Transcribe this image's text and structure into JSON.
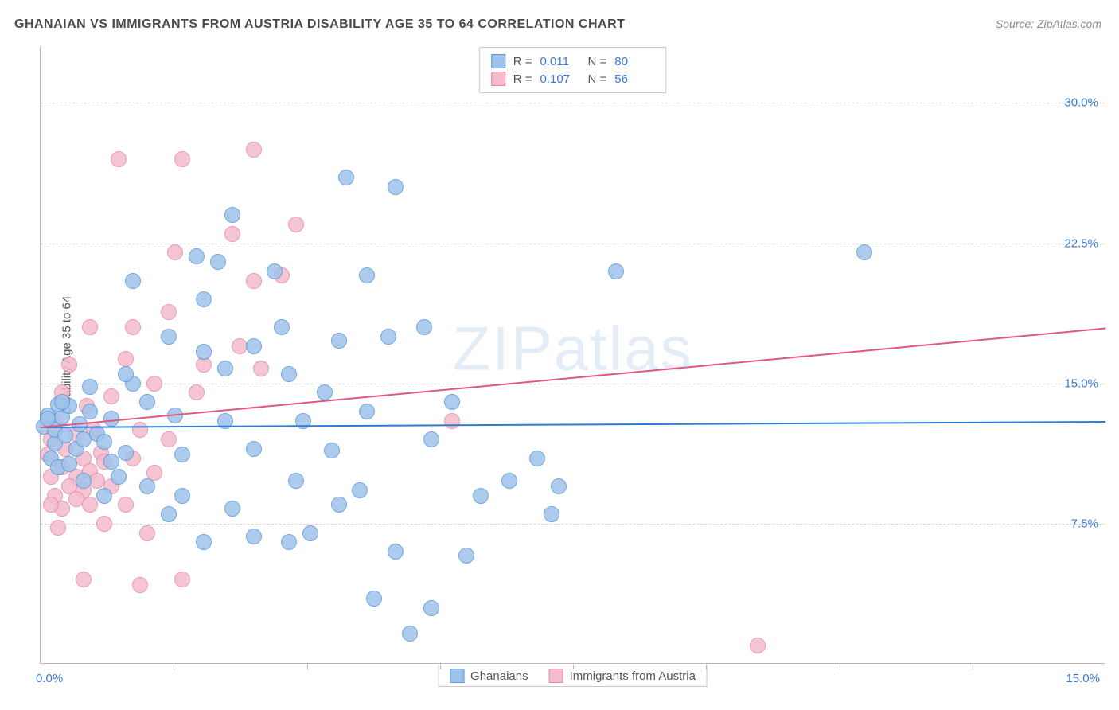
{
  "title": "GHANAIAN VS IMMIGRANTS FROM AUSTRIA DISABILITY AGE 35 TO 64 CORRELATION CHART",
  "source": "Source: ZipAtlas.com",
  "ylabel": "Disability Age 35 to 64",
  "watermark_a": "ZIP",
  "watermark_b": "atlas",
  "chart": {
    "type": "scatter",
    "xlim": [
      0,
      15
    ],
    "ylim": [
      0,
      33
    ],
    "ytick_values": [
      7.5,
      15.0,
      22.5,
      30.0
    ],
    "ytick_labels": [
      "7.5%",
      "15.0%",
      "22.5%",
      "30.0%"
    ],
    "xtick_values": [
      1.875,
      3.75,
      5.625,
      7.5,
      9.375,
      11.25,
      13.125
    ],
    "xaxis_left_label": "0.0%",
    "xaxis_right_label": "15.0%",
    "grid_color": "#d6d6d6",
    "axis_color": "#b9b9b9",
    "background_color": "#ffffff",
    "point_radius": 10,
    "point_border_width": 1.5,
    "point_fill_opacity": 0.35,
    "series": [
      {
        "name": "Ghanaians",
        "color_border": "#5e98d9",
        "color_fill": "#9ec3ea",
        "trend_color": "#2d7dd2",
        "R": "0.011",
        "N": "80",
        "trend_y_at_xmin": 12.7,
        "trend_y_at_xmax": 13.0,
        "points": [
          [
            11.6,
            22.0
          ],
          [
            8.1,
            21.0
          ],
          [
            5.4,
            18.0
          ],
          [
            4.9,
            17.5
          ],
          [
            4.3,
            26.0
          ],
          [
            5.0,
            25.5
          ],
          [
            6.6,
            9.8
          ],
          [
            6.2,
            9.0
          ],
          [
            7.0,
            11.0
          ],
          [
            7.3,
            9.5
          ],
          [
            7.2,
            8.0
          ],
          [
            5.5,
            3.0
          ],
          [
            4.7,
            3.5
          ],
          [
            5.0,
            6.0
          ],
          [
            6.0,
            5.8
          ],
          [
            5.2,
            1.6
          ],
          [
            3.0,
            6.8
          ],
          [
            3.5,
            6.5
          ],
          [
            2.3,
            6.5
          ],
          [
            2.7,
            8.3
          ],
          [
            3.8,
            7.0
          ],
          [
            4.2,
            8.5
          ],
          [
            3.0,
            11.5
          ],
          [
            2.6,
            13.0
          ],
          [
            2.0,
            11.2
          ],
          [
            1.9,
            13.3
          ],
          [
            2.3,
            16.7
          ],
          [
            3.0,
            17.0
          ],
          [
            2.3,
            19.5
          ],
          [
            2.2,
            21.8
          ],
          [
            2.5,
            21.5
          ],
          [
            1.3,
            20.5
          ],
          [
            1.8,
            17.5
          ],
          [
            1.3,
            15.0
          ],
          [
            3.3,
            21.0
          ],
          [
            2.7,
            24.0
          ],
          [
            3.4,
            18.0
          ],
          [
            3.5,
            15.5
          ],
          [
            2.6,
            15.8
          ],
          [
            3.7,
            13.0
          ],
          [
            4.1,
            11.4
          ],
          [
            4.6,
            13.5
          ],
          [
            4.2,
            17.3
          ],
          [
            4.6,
            20.8
          ],
          [
            0.05,
            12.7
          ],
          [
            0.1,
            13.3
          ],
          [
            0.2,
            11.8
          ],
          [
            0.2,
            12.5
          ],
          [
            0.3,
            13.2
          ],
          [
            0.35,
            12.2
          ],
          [
            0.4,
            13.8
          ],
          [
            0.5,
            11.5
          ],
          [
            0.55,
            12.8
          ],
          [
            0.6,
            12.0
          ],
          [
            0.7,
            13.5
          ],
          [
            0.8,
            12.3
          ],
          [
            0.9,
            11.9
          ],
          [
            1.0,
            13.1
          ],
          [
            1.0,
            10.8
          ],
          [
            1.2,
            11.3
          ],
          [
            0.15,
            11.0
          ],
          [
            0.25,
            10.5
          ],
          [
            0.4,
            10.7
          ],
          [
            0.1,
            13.1
          ],
          [
            0.25,
            13.9
          ],
          [
            5.8,
            14.0
          ],
          [
            5.5,
            12.0
          ],
          [
            4.0,
            14.5
          ],
          [
            4.5,
            9.3
          ],
          [
            3.6,
            9.8
          ],
          [
            2.0,
            9.0
          ],
          [
            1.5,
            9.5
          ],
          [
            1.8,
            8.0
          ],
          [
            0.6,
            9.8
          ],
          [
            0.9,
            9.0
          ],
          [
            1.1,
            10.0
          ],
          [
            0.3,
            14.0
          ],
          [
            0.7,
            14.8
          ],
          [
            1.2,
            15.5
          ],
          [
            1.5,
            14.0
          ]
        ]
      },
      {
        "name": "Immigrants from Austria",
        "color_border": "#e68aa6",
        "color_fill": "#f4bccc",
        "trend_color": "#e0577f",
        "R": "0.107",
        "N": "56",
        "trend_y_at_xmin": 12.7,
        "trend_y_at_xmax": 18.0,
        "points": [
          [
            10.1,
            1.0
          ],
          [
            5.8,
            13.0
          ],
          [
            3.6,
            23.5
          ],
          [
            3.0,
            27.5
          ],
          [
            2.7,
            23.0
          ],
          [
            2.0,
            27.0
          ],
          [
            1.9,
            22.0
          ],
          [
            1.1,
            27.0
          ],
          [
            1.8,
            18.8
          ],
          [
            1.3,
            18.0
          ],
          [
            0.7,
            18.0
          ],
          [
            2.3,
            16.0
          ],
          [
            2.8,
            17.0
          ],
          [
            3.1,
            15.8
          ],
          [
            3.0,
            20.5
          ],
          [
            3.4,
            20.8
          ],
          [
            2.2,
            14.5
          ],
          [
            1.6,
            15.0
          ],
          [
            1.2,
            16.3
          ],
          [
            0.4,
            16.0
          ],
          [
            1.0,
            14.3
          ],
          [
            0.3,
            14.5
          ],
          [
            0.65,
            13.8
          ],
          [
            0.2,
            13.0
          ],
          [
            0.5,
            12.3
          ],
          [
            0.15,
            12.0
          ],
          [
            0.35,
            11.5
          ],
          [
            0.6,
            11.0
          ],
          [
            0.85,
            11.3
          ],
          [
            0.1,
            11.2
          ],
          [
            0.3,
            10.5
          ],
          [
            0.5,
            10.0
          ],
          [
            0.7,
            10.3
          ],
          [
            0.9,
            10.8
          ],
          [
            0.15,
            10.0
          ],
          [
            0.4,
            9.5
          ],
          [
            0.6,
            9.3
          ],
          [
            0.8,
            9.8
          ],
          [
            1.0,
            9.5
          ],
          [
            0.2,
            9.0
          ],
          [
            0.5,
            8.8
          ],
          [
            0.3,
            8.3
          ],
          [
            0.15,
            8.5
          ],
          [
            0.7,
            8.5
          ],
          [
            0.9,
            7.5
          ],
          [
            0.25,
            7.3
          ],
          [
            0.6,
            4.5
          ],
          [
            1.4,
            4.2
          ],
          [
            2.0,
            4.5
          ],
          [
            1.4,
            12.5
          ],
          [
            1.8,
            12.0
          ],
          [
            1.3,
            11.0
          ],
          [
            1.6,
            10.2
          ],
          [
            1.2,
            8.5
          ],
          [
            1.5,
            7.0
          ],
          [
            0.75,
            12.5
          ]
        ]
      }
    ]
  },
  "stats_legend": {
    "r_label": "R =",
    "n_label": "N ="
  },
  "bottom_legend": {
    "items": [
      "Ghanaians",
      "Immigrants from Austria"
    ]
  }
}
